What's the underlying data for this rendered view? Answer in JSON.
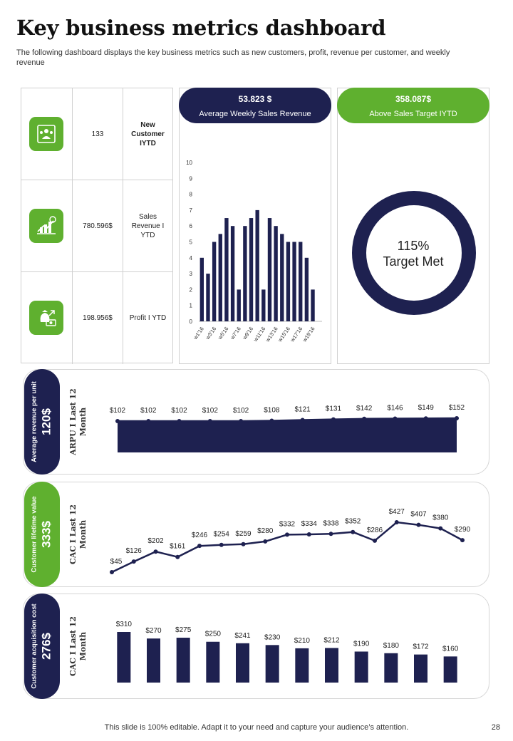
{
  "page": {
    "title": "Key business metrics dashboard",
    "subtitle": "The following dashboard displays the key  business metrics such as new customers, profit, revenue per customer, and weekly revenue",
    "footer": "This slide is 100% editable. Adapt it to your need and capture your audience’s attention.",
    "page_number": "28"
  },
  "colors": {
    "navy": "#1e2150",
    "green": "#5fb02f"
  },
  "kpis": [
    {
      "value": "133",
      "label": "New Customer IYTD",
      "icon": "customers-icon"
    },
    {
      "value": "780.596$",
      "label": "Sales Revenue I YTD",
      "icon": "revenue-growth-icon"
    },
    {
      "value": "198.956$",
      "label": "Profit I YTD",
      "icon": "money-bag-icon"
    }
  ],
  "weekly_sales": {
    "value": "53.823 $",
    "label": "Average Weekly Sales Revenue"
  },
  "target": {
    "value": "358.087$",
    "label": "Above Sales Target IYTD",
    "donut_percent": "115%",
    "donut_label": "Target Met"
  },
  "arpu": {
    "label": "Average revenue per unit",
    "value": "120$",
    "caption_line1": "ARPU I Last 12",
    "caption_line2": "Month"
  },
  "clv": {
    "label": "Customer lifetime value",
    "value": "333$",
    "caption_line1": "CAC I Last 12",
    "caption_line2": "Month"
  },
  "cac": {
    "label": "Customer acquisition cost",
    "value": "276$",
    "caption_line1": "CAC I Last 12",
    "caption_line2": "Month"
  },
  "chart_data": [
    {
      "id": "weekly-bars",
      "type": "bar",
      "title": "Average Weekly Sales Revenue",
      "categories": [
        "w1'16",
        "w2'16",
        "w3'16",
        "w4'16",
        "w5'16",
        "w6'16",
        "w7'16",
        "w8'16",
        "w9'16",
        "w10'16",
        "w11'16",
        "w12'16",
        "w13'16",
        "w14'16",
        "w15'16",
        "w16'16",
        "w17'16",
        "w18'16",
        "w19'16",
        "w20'16"
      ],
      "tick_labels": [
        "w1'16",
        "w3'16",
        "w5'16",
        "w7'16",
        "w9'16",
        "w11'16",
        "w13'16",
        "w15'16",
        "w17'16",
        "w19'16"
      ],
      "values": [
        4,
        3,
        5,
        5.5,
        6.5,
        6,
        2,
        6,
        6.5,
        7,
        2,
        6.5,
        6,
        5.5,
        5,
        5,
        5,
        4,
        2,
        0
      ],
      "ylim": [
        0,
        10
      ],
      "yticks": [
        0,
        1,
        2,
        3,
        4,
        5,
        6,
        7,
        8,
        9,
        10
      ]
    },
    {
      "id": "target-donut",
      "type": "pie",
      "title": "Target Met",
      "values": [
        115
      ],
      "labels": [
        "115%"
      ]
    },
    {
      "id": "arpu-area",
      "type": "area",
      "title": "ARPU I Last 12 Month",
      "values": [
        102,
        102,
        102,
        102,
        102,
        108,
        121,
        131,
        142,
        146,
        149,
        152
      ],
      "labels": [
        "$102",
        "$102",
        "$102",
        "$102",
        "$102",
        "$108",
        "$121",
        "$131",
        "$142",
        "$146",
        "$149",
        "$152"
      ],
      "ylim": [
        0,
        160
      ]
    },
    {
      "id": "clv-line",
      "type": "line",
      "title": "CAC I Last 12 Month",
      "values": [
        45,
        126,
        202,
        161,
        246,
        254,
        259,
        280,
        332,
        334,
        338,
        352,
        286,
        427,
        407,
        380,
        290
      ],
      "labels": [
        "$45",
        "$126",
        "$202",
        "$161",
        "$246",
        "$254",
        "$259",
        "$280",
        "$332",
        "$334",
        "$338",
        "$352",
        "$286",
        "$427",
        "$407",
        "$380",
        "$290"
      ],
      "ylim": [
        0,
        450
      ]
    },
    {
      "id": "cac-bars",
      "type": "bar",
      "title": "CAC I Last 12 Month",
      "values": [
        310,
        270,
        275,
        250,
        241,
        230,
        210,
        212,
        190,
        180,
        172,
        160
      ],
      "labels": [
        "$310",
        "$270",
        "$275",
        "$250",
        "$241",
        "$230",
        "$210",
        "$212",
        "$190",
        "$180",
        "$172",
        "$160"
      ],
      "ylim": [
        0,
        310
      ]
    }
  ]
}
